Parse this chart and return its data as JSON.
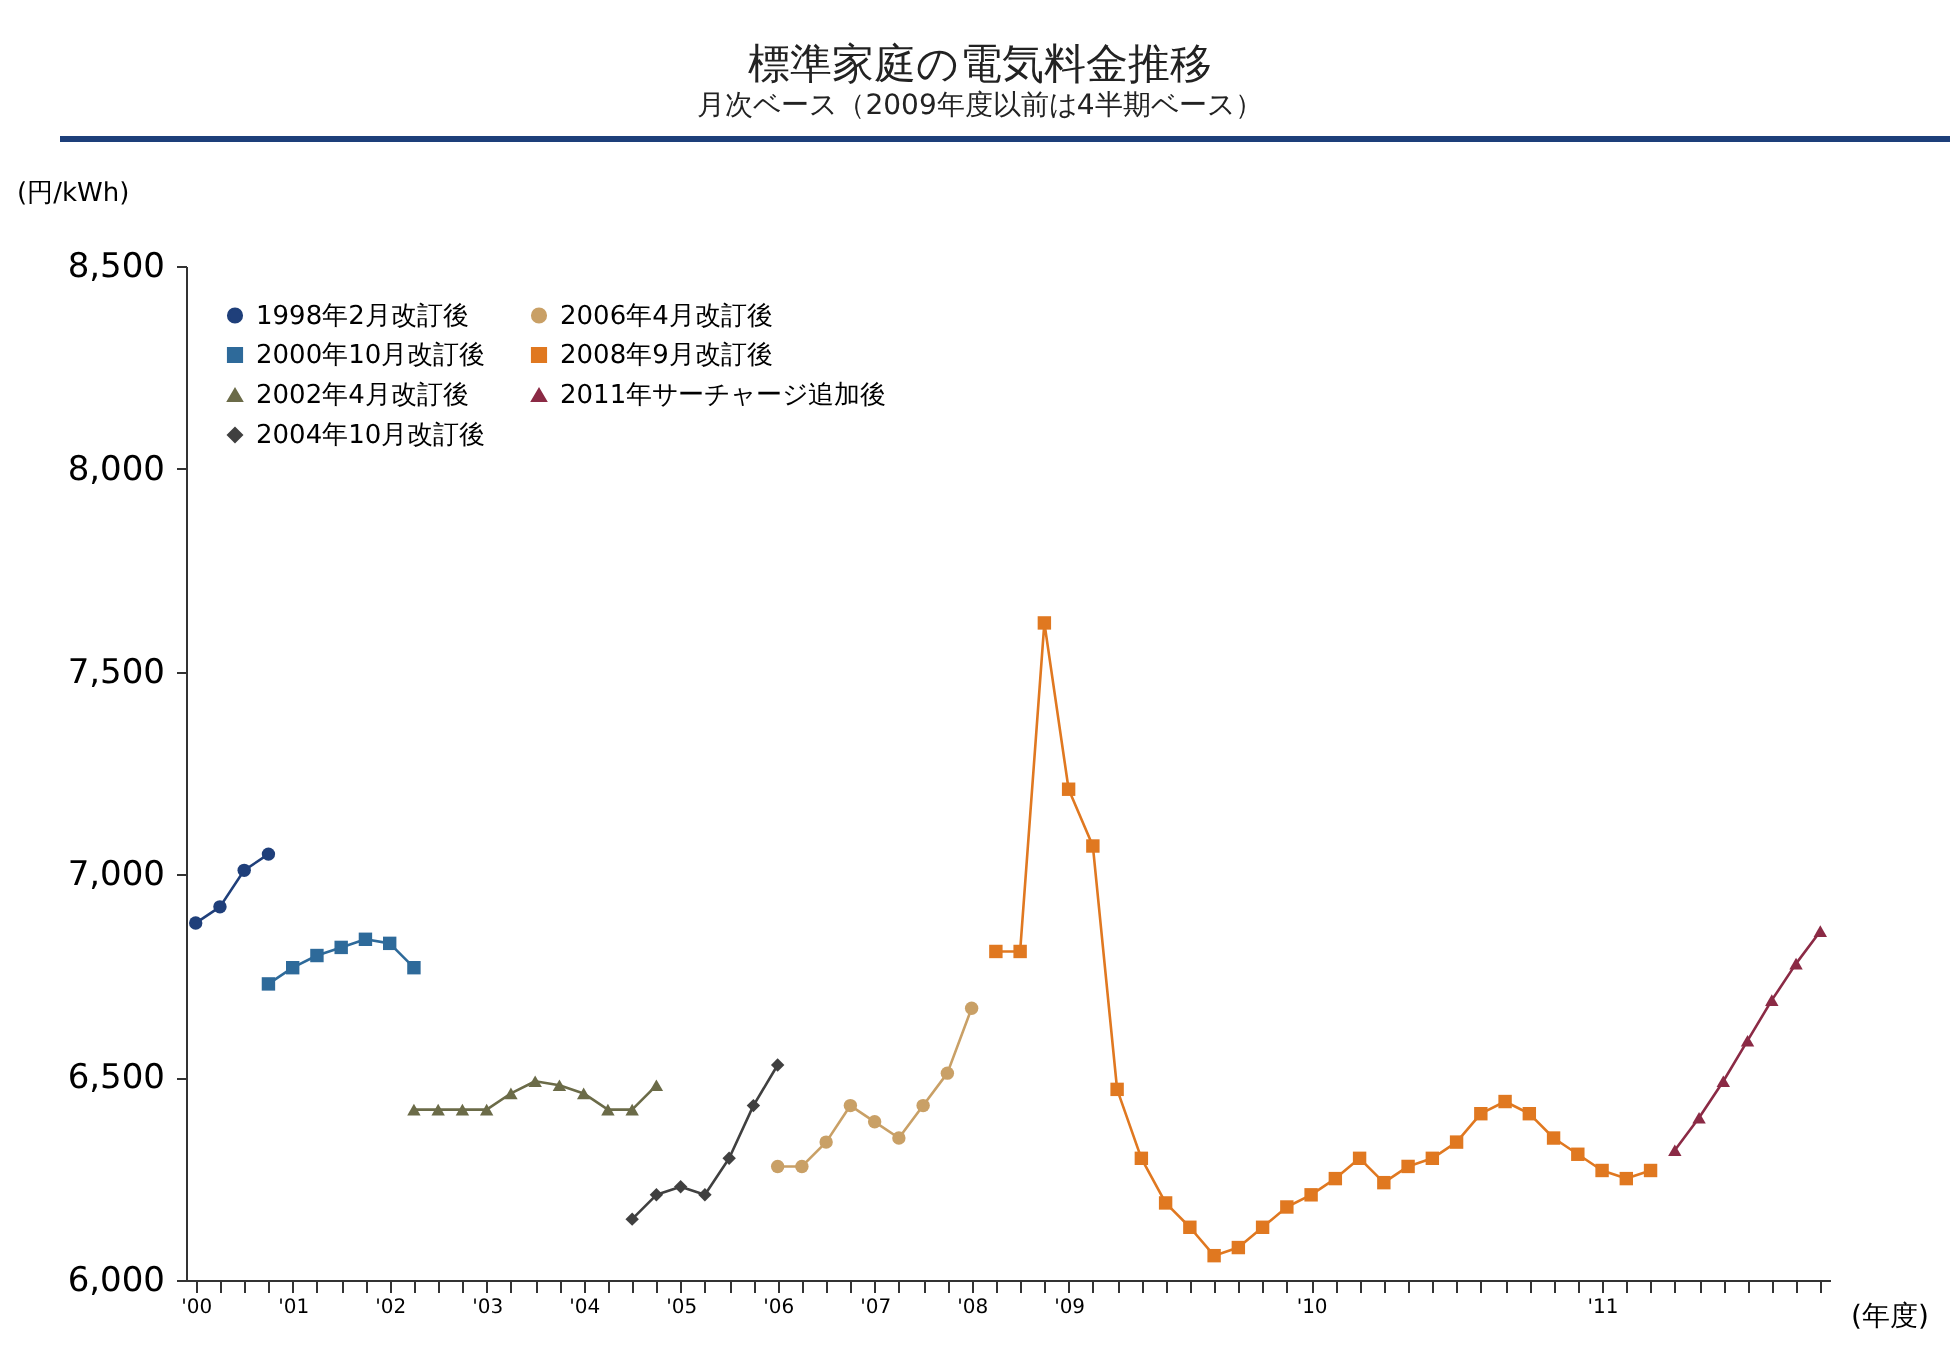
{
  "chart_data": {
    "type": "line",
    "title": "標準家庭の電気料金推移",
    "subtitle": "月次ベース（2009年度以前は4半期ベース）",
    "ylabel": "(円/kWh)",
    "xlabel": "(年度)",
    "categories": [
      "'00",
      null,
      null,
      null,
      "'01",
      null,
      null,
      null,
      "'02",
      null,
      null,
      null,
      "'03",
      null,
      null,
      null,
      "'04",
      null,
      null,
      null,
      "'05",
      null,
      null,
      null,
      "'06",
      null,
      null,
      null,
      "'07",
      null,
      null,
      null,
      "'08",
      null,
      null,
      null,
      "'09",
      null,
      null,
      null,
      null,
      null,
      null,
      null,
      null,
      null,
      "'10",
      null,
      null,
      null,
      null,
      null,
      null,
      null,
      null,
      null,
      null,
      null,
      "'11",
      null,
      null,
      null,
      null,
      null,
      null,
      null,
      null,
      null
    ],
    "series": [
      {
        "name": "1998年2月改訂後",
        "color": "#1f3f7a",
        "marker": "circle",
        "values": [
          6880,
          6920,
          7010,
          7050,
          null,
          null,
          null,
          null,
          null,
          null,
          null,
          null,
          null,
          null,
          null,
          null,
          null,
          null,
          null,
          null,
          null,
          null,
          null,
          null,
          null,
          null,
          null,
          null,
          null,
          null,
          null,
          null,
          null,
          null,
          null,
          null,
          null,
          null,
          null,
          null,
          null,
          null,
          null,
          null,
          null,
          null,
          null,
          null,
          null,
          null,
          null,
          null,
          null,
          null,
          null,
          null,
          null,
          null,
          null,
          null,
          null,
          null,
          null,
          null,
          null,
          null,
          null,
          null
        ]
      },
      {
        "name": "2006年4月改訂後",
        "color": "#c9a066",
        "marker": "circle",
        "values": [
          null,
          null,
          null,
          null,
          null,
          null,
          null,
          null,
          null,
          null,
          null,
          null,
          null,
          null,
          null,
          null,
          null,
          null,
          null,
          null,
          null,
          null,
          null,
          null,
          6280,
          6280,
          6340,
          6430,
          6390,
          6350,
          6430,
          6510,
          6670,
          null,
          null,
          null,
          null,
          null,
          null,
          null,
          null,
          null,
          null,
          null,
          null,
          null,
          null,
          null,
          null,
          null,
          null,
          null,
          null,
          null,
          null,
          null,
          null,
          null,
          null,
          null,
          null,
          null,
          null,
          null,
          null,
          null,
          null,
          null
        ]
      },
      {
        "name": "2000年10月改訂後",
        "color": "#2e6a9a",
        "marker": "square",
        "values": [
          null,
          null,
          null,
          6730,
          6770,
          6800,
          6820,
          6840,
          6830,
          6770,
          null,
          null,
          null,
          null,
          null,
          null,
          null,
          null,
          null,
          null,
          null,
          null,
          null,
          null,
          null,
          null,
          null,
          null,
          null,
          null,
          null,
          null,
          null,
          null,
          null,
          null,
          null,
          null,
          null,
          null,
          null,
          null,
          null,
          null,
          null,
          null,
          null,
          null,
          null,
          null,
          null,
          null,
          null,
          null,
          null,
          null,
          null,
          null,
          null,
          null,
          null,
          null,
          null,
          null,
          null,
          null,
          null,
          null
        ]
      },
      {
        "name": "2008年9月改訂後",
        "color": "#e07820",
        "marker": "square",
        "values": [
          null,
          null,
          null,
          null,
          null,
          null,
          null,
          null,
          null,
          null,
          null,
          null,
          null,
          null,
          null,
          null,
          null,
          null,
          null,
          null,
          null,
          null,
          null,
          null,
          null,
          null,
          null,
          null,
          null,
          null,
          null,
          null,
          null,
          6810,
          6810,
          7620,
          7210,
          7070,
          6470,
          6300,
          6190,
          6130,
          6060,
          6080,
          6130,
          6180,
          6210,
          6250,
          6300,
          6240,
          6280,
          6300,
          6340,
          6410,
          6440,
          6410,
          6350,
          6310,
          6270,
          6250,
          6270,
          null,
          null,
          null,
          null,
          null,
          null,
          null
        ]
      },
      {
        "name": "2002年4月改訂後",
        "color": "#6b6b48",
        "marker": "triangle",
        "values": [
          null,
          null,
          null,
          null,
          null,
          null,
          null,
          null,
          null,
          6420,
          6420,
          6420,
          6420,
          6460,
          6490,
          6480,
          6460,
          6420,
          6420,
          6480,
          null,
          null,
          null,
          null,
          null,
          null,
          null,
          null,
          null,
          null,
          null,
          null,
          null,
          null,
          null,
          null,
          null,
          null,
          null,
          null,
          null,
          null,
          null,
          null,
          null,
          null,
          null,
          null,
          null,
          null,
          null,
          null,
          null,
          null,
          null,
          null,
          null,
          null,
          null,
          null,
          null,
          null,
          null,
          null,
          null,
          null,
          null,
          null
        ]
      },
      {
        "name": "2011年サーチャージ追加後",
        "color": "#8b2a45",
        "marker": "triangle",
        "values": [
          null,
          null,
          null,
          null,
          null,
          null,
          null,
          null,
          null,
          null,
          null,
          null,
          null,
          null,
          null,
          null,
          null,
          null,
          null,
          null,
          null,
          null,
          null,
          null,
          null,
          null,
          null,
          null,
          null,
          null,
          null,
          null,
          null,
          null,
          null,
          null,
          null,
          null,
          null,
          null,
          null,
          null,
          null,
          null,
          null,
          null,
          null,
          null,
          null,
          null,
          null,
          null,
          null,
          null,
          null,
          null,
          null,
          null,
          null,
          null,
          null,
          6320,
          6400,
          6490,
          6590,
          6690,
          6780,
          6860
        ]
      },
      {
        "name": "2004年10月改訂後",
        "color": "#404040",
        "marker": "diamond",
        "values": [
          null,
          null,
          null,
          null,
          null,
          null,
          null,
          null,
          null,
          null,
          null,
          null,
          null,
          null,
          null,
          null,
          null,
          null,
          6150,
          6210,
          6230,
          6210,
          6300,
          6430,
          6530,
          null,
          null,
          null,
          null,
          null,
          null,
          null,
          null,
          null,
          null,
          null,
          null,
          null,
          null,
          null,
          null,
          null,
          null,
          null,
          null,
          null,
          null,
          null,
          null,
          null,
          null,
          null,
          null,
          null,
          null,
          null,
          null,
          null,
          null,
          null,
          null,
          null,
          null,
          null,
          null,
          null,
          null,
          null
        ]
      }
    ],
    "ylim": [
      6000,
      8500
    ],
    "yticks": [
      {
        "value": 6000,
        "label": "6,000"
      },
      {
        "value": 6500,
        "label": "6,500"
      },
      {
        "value": 7000,
        "label": "7,000"
      },
      {
        "value": 7500,
        "label": "7,500"
      },
      {
        "value": 8000,
        "label": "8,000"
      },
      {
        "value": 8500,
        "label": "8,500"
      }
    ],
    "grid": false,
    "legend": "top left",
    "line_style": "solid"
  }
}
